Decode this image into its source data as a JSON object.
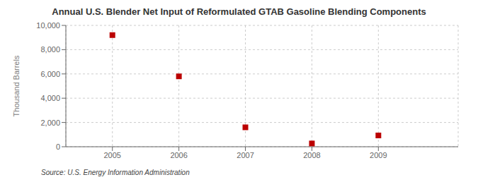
{
  "chart_data": {
    "type": "scatter",
    "title": "Annual U.S. Blender Net Input of Reformulated GTAB Gasoline Blending Components",
    "ylabel": "Thousand Barrels",
    "source": "Source: U.S. Energy Information Administration",
    "x": [
      2005,
      2006,
      2007,
      2008,
      2009
    ],
    "values": [
      9200,
      5800,
      1600,
      270,
      930
    ],
    "color": "#bb0000",
    "marker": "square",
    "xlim": [
      2004.3,
      2010.2
    ],
    "xticks": [
      2005,
      2006,
      2007,
      2008,
      2009
    ],
    "ylim": [
      0,
      10000
    ],
    "yticks": [
      0,
      {
        "value": 2000,
        "label": "2,000"
      },
      {
        "value": 4000,
        "label": "4,000"
      },
      {
        "value": 6000,
        "label": "6,000"
      },
      {
        "value": 8000,
        "label": "8,000"
      },
      {
        "value": 10000,
        "label": "10,000"
      }
    ],
    "grid": true
  }
}
